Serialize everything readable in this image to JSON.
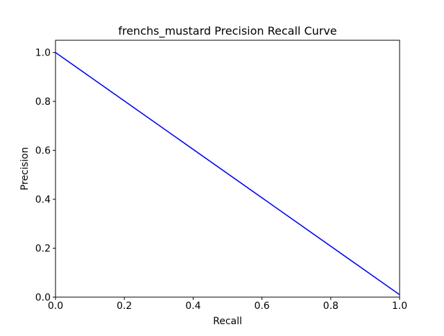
{
  "chart_data": {
    "type": "line",
    "title": "frenchs_mustard Precision Recall Curve",
    "xlabel": "Recall",
    "ylabel": "Precision",
    "xlim": [
      0.0,
      1.0
    ],
    "ylim": [
      0.0,
      1.05
    ],
    "grid": false,
    "xticks": [
      0.0,
      0.2,
      0.4,
      0.6,
      0.8,
      1.0
    ],
    "xtick_labels": [
      "0.0",
      "0.2",
      "0.4",
      "0.6",
      "0.8",
      "1.0"
    ],
    "yticks": [
      0.0,
      0.2,
      0.4,
      0.6,
      0.8,
      1.0
    ],
    "ytick_labels": [
      "0.0",
      "0.2",
      "0.4",
      "0.6",
      "0.8",
      "1.0"
    ],
    "series": [
      {
        "color": "#0000ff",
        "x": [
          0.0,
          1.0
        ],
        "y": [
          1.0,
          0.01
        ]
      }
    ]
  }
}
